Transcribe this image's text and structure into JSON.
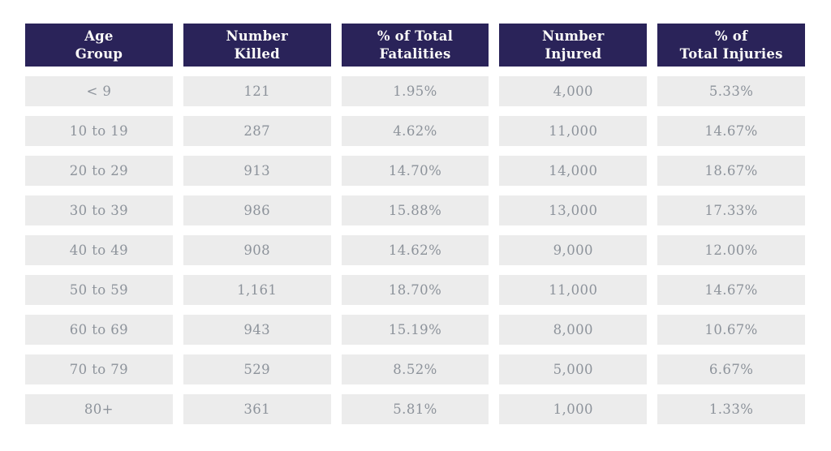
{
  "colors": {
    "header_bg": "#2A2359",
    "header_text": "#FBFAF8",
    "cell_bg": "#ECECEC",
    "cell_text": "#8D939B",
    "page_bg": "#FFFFFF"
  },
  "table": {
    "headers": [
      "Age\nGroup",
      "Number\nKilled",
      "% of Total\nFatalities",
      "Number\nInjured",
      "% of\nTotal Injuries"
    ],
    "rows": [
      [
        "< 9",
        "121",
        "1.95%",
        "4,000",
        "5.33%"
      ],
      [
        "10 to 19",
        "287",
        "4.62%",
        "11,000",
        "14.67%"
      ],
      [
        "20 to 29",
        "913",
        "14.70%",
        "14,000",
        "18.67%"
      ],
      [
        "30 to 39",
        "986",
        "15.88%",
        "13,000",
        "17.33%"
      ],
      [
        "40 to 49",
        "908",
        "14.62%",
        "9,000",
        "12.00%"
      ],
      [
        "50 to 59",
        "1,161",
        "18.70%",
        "11,000",
        "14.67%"
      ],
      [
        "60 to 69",
        "943",
        "15.19%",
        "8,000",
        "10.67%"
      ],
      [
        "70 to 79",
        "529",
        "8.52%",
        "5,000",
        "6.67%"
      ],
      [
        "80+",
        "361",
        "5.81%",
        "1,000",
        "1.33%"
      ]
    ]
  },
  "chart_data": {
    "type": "table",
    "title": "",
    "columns": [
      "Age Group",
      "Number Killed",
      "% of Total Fatalities",
      "Number Injured",
      "% of Total Injuries"
    ],
    "categories": [
      "< 9",
      "10 to 19",
      "20 to 29",
      "30 to 39",
      "40 to 49",
      "50 to 59",
      "60 to 69",
      "70 to 79",
      "80+"
    ],
    "series": [
      {
        "name": "Number Killed",
        "values": [
          121,
          287,
          913,
          986,
          908,
          1161,
          943,
          529,
          361
        ]
      },
      {
        "name": "% of Total Fatalities",
        "values": [
          1.95,
          4.62,
          14.7,
          15.88,
          14.62,
          18.7,
          15.19,
          8.52,
          5.81
        ]
      },
      {
        "name": "Number Injured",
        "values": [
          4000,
          11000,
          14000,
          13000,
          9000,
          11000,
          8000,
          5000,
          1000
        ]
      },
      {
        "name": "% of Total Injuries",
        "values": [
          5.33,
          14.67,
          18.67,
          17.33,
          12.0,
          14.67,
          10.67,
          6.67,
          1.33
        ]
      }
    ]
  }
}
